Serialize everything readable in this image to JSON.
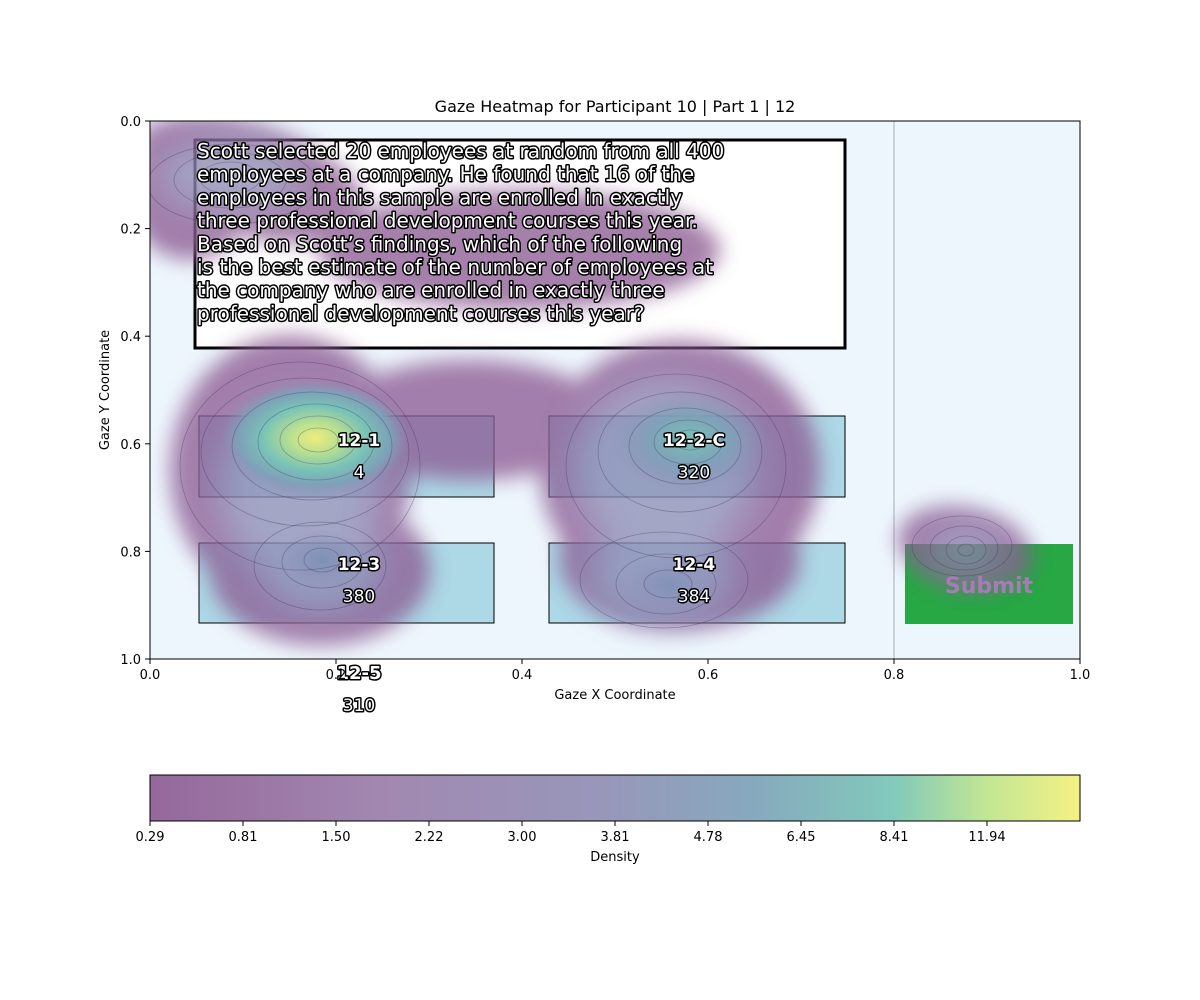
{
  "chart_data": {
    "type": "heatmap",
    "title": "Gaze Heatmap for Participant 10 | Part 1 | 12",
    "xlabel": "Gaze X Coordinate",
    "ylabel": "Gaze Y Coordinate",
    "xlim": [
      0.0,
      1.0
    ],
    "ylim": [
      1.0,
      0.0
    ],
    "y_inverted": true,
    "x_ticks": [
      "0.0",
      "0.2",
      "0.4",
      "0.6",
      "0.8",
      "1.0"
    ],
    "y_ticks": [
      "0.0",
      "0.2",
      "0.4",
      "0.6",
      "0.8",
      "1.0"
    ],
    "grid": false,
    "question_text": "Scott selected 20 employees at random from all 400 employees at a company. He found that 16 of the employees in this sample are enrolled in exactly three professional development courses this year. Based on Scott’s findings, which of the following is the best estimate of the number of employees at the company who are enrolled in exactly three professional development courses this year?",
    "options": [
      {
        "id": "12-1",
        "value": "4"
      },
      {
        "id": "12-2-C",
        "value": "320"
      },
      {
        "id": "12-3",
        "value": "380"
      },
      {
        "id": "12-4",
        "value": "384"
      },
      {
        "id": "12-5",
        "value": "310"
      }
    ],
    "submit_label": "Submit",
    "colorbar": {
      "label": "Density",
      "tick_labels": [
        "0.29",
        "0.81",
        "1.50",
        "2.22",
        "3.00",
        "3.81",
        "4.78",
        "6.45",
        "8.41",
        "11.94"
      ]
    },
    "density_peaks": [
      {
        "x": 0.18,
        "y": 0.59,
        "density": 13.5
      },
      {
        "x": 0.58,
        "y": 0.6,
        "density": 5.5
      },
      {
        "x": 0.19,
        "y": 0.8,
        "density": 3.5
      },
      {
        "x": 0.58,
        "y": 0.83,
        "density": 3.0
      },
      {
        "x": 0.12,
        "y": 0.08,
        "density": 3.0
      },
      {
        "x": 0.88,
        "y": 0.8,
        "density": 3.0
      }
    ],
    "colors": {
      "background": "#eef6fd",
      "option_box": "#add8e6",
      "submit_box": "#28a745",
      "colormap": [
        "#8c5b93",
        "#9a7eaa",
        "#8e8fb5",
        "#7ca2b8",
        "#77c5b6",
        "#bde48b",
        "#f4f07a"
      ]
    }
  }
}
